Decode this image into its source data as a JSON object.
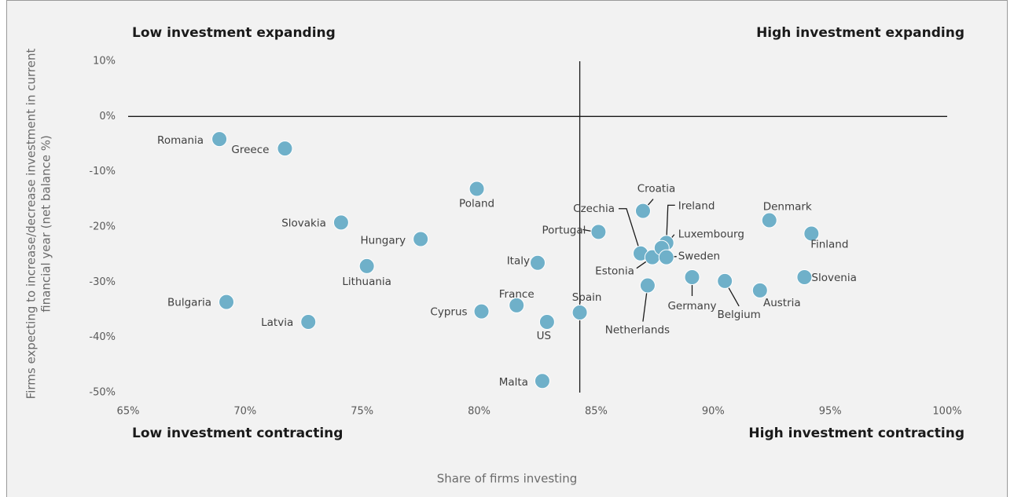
{
  "chart_data": {
    "type": "scatter",
    "annotations": [
      "Low investment expanding",
      "High investment expanding",
      "Low investment contracting",
      "High investment contracting"
    ],
    "xlabel": "Share of firms investing",
    "ylabel": [
      "Firms expecting to increase/decrease investment in current",
      "financial year  (net balance %)"
    ],
    "color": "#6fb0c9",
    "labels": [
      "Romania",
      "Greece",
      "Poland",
      "Slovakia",
      "Hungary",
      "Lithuania",
      "Bulgaria",
      "Latvia",
      "Cyprus",
      "France",
      "US",
      "Italy",
      "Malta",
      "Spain",
      "Portugal",
      "Croatia",
      "Czechia",
      "Estonia",
      "Ireland",
      "Luxembourg",
      "Sweden",
      "Netherlands",
      "Germany",
      "Belgium",
      "Austria",
      "Denmark",
      "Finland",
      "Slovenia"
    ],
    "x": [
      68.9,
      71.7,
      79.9,
      74.1,
      77.5,
      75.2,
      69.2,
      72.7,
      80.1,
      81.6,
      82.9,
      82.5,
      82.7,
      84.3,
      85.1,
      87.0,
      86.9,
      87.4,
      88.0,
      87.8,
      88.0,
      87.2,
      89.1,
      90.5,
      92.0,
      92.4,
      94.2,
      93.9
    ],
    "values": [
      -4.1,
      -5.8,
      -13.1,
      -19.2,
      -22.2,
      -27.1,
      -33.6,
      -37.2,
      -35.3,
      -34.2,
      -37.2,
      -26.5,
      -47.9,
      -35.5,
      -20.9,
      -17.1,
      -24.8,
      -25.5,
      -22.9,
      -23.8,
      -25.5,
      -30.6,
      -29.1,
      -29.8,
      -31.5,
      -18.8,
      -21.2,
      -29.1
    ],
    "reference_x": 84.3,
    "reference_y": 0,
    "xlim": [
      65,
      100
    ],
    "xticks": [
      {
        "value": 65,
        "label": "65%"
      },
      {
        "value": 70,
        "label": "70%"
      },
      {
        "value": 75,
        "label": "75%"
      },
      {
        "value": 80,
        "label": "80%"
      },
      {
        "value": 85,
        "label": "85%"
      },
      {
        "value": 90,
        "label": "90%"
      },
      {
        "value": 95,
        "label": "95%"
      },
      {
        "value": 100,
        "label": "100%"
      }
    ],
    "ylim": [
      -50,
      10
    ],
    "yticks": [
      {
        "value": -50,
        "label": "-50%"
      },
      {
        "value": -40,
        "label": "-40%"
      },
      {
        "value": -30,
        "label": "-30%"
      },
      {
        "value": -20,
        "label": "-20%"
      },
      {
        "value": -10,
        "label": "-10%"
      },
      {
        "value": 0,
        "label": "0%"
      },
      {
        "value": 10,
        "label": "10%"
      }
    ]
  }
}
